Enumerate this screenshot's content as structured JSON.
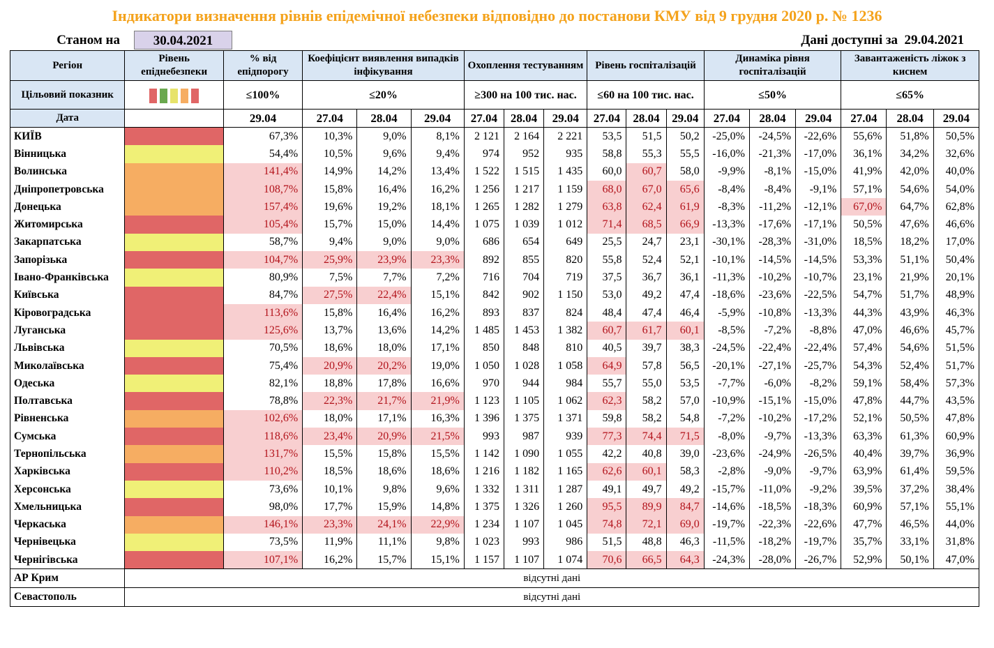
{
  "title": "Індикатори визначення рівнів епідемічної небезпеки відповідно до постанови КМУ від 9 грудня 2020 р. № 1236",
  "as_of": {
    "label": "Станом на",
    "date": "30.04.2021"
  },
  "available": {
    "label": "Дані доступні за",
    "date": "29.04.2021"
  },
  "headers": {
    "region": "Регіон",
    "level": "Рівень епіднебезпеки",
    "pct": "% від епідпорогу",
    "detect": "Коефіцієнт виявлення випадків інфікування",
    "testing": "Охоплення тестуванням",
    "hosp": "Рівень госпіталізацій",
    "dyn": "Динаміка рівня госпіталізацій",
    "oxygen": "Завантаженість ліжок з киснем"
  },
  "targets": {
    "label": "Цільовий показник",
    "pct": "≤100%",
    "detect": "≤20%",
    "testing": "≥300 на 100 тис. нас.",
    "hosp": "≤60 на 100 тис. нас.",
    "dyn": "≤50%",
    "oxygen": "≤65%"
  },
  "legend_colors": [
    "#e06666",
    "#6aa84f",
    "#e7e36b",
    "#f6ad62",
    "#e06666"
  ],
  "dates_label": "Дата",
  "dates": [
    "27.04",
    "28.04",
    "29.04"
  ],
  "level_colors": {
    "red": "#e06666",
    "orange": "#f6ad62",
    "yellow": "#f0f077"
  },
  "rows": [
    {
      "name": "КИЇВ",
      "level": "red",
      "pct": "67,3%",
      "detect": [
        "10,3%",
        "9,0%",
        "8,1%"
      ],
      "testing": [
        "2 121",
        "2 164",
        "2 221"
      ],
      "hosp": [
        "53,5",
        "51,5",
        "50,2"
      ],
      "dyn": [
        "-25,0%",
        "-24,5%",
        "-22,6%"
      ],
      "oxygen": [
        "55,6%",
        "51,8%",
        "50,5%"
      ]
    },
    {
      "name": "Вінницька",
      "level": "yellow",
      "pct": "54,4%",
      "detect": [
        "10,5%",
        "9,6%",
        "9,4%"
      ],
      "testing": [
        "974",
        "952",
        "935"
      ],
      "hosp": [
        "58,8",
        "55,3",
        "55,5"
      ],
      "dyn": [
        "-16,0%",
        "-21,3%",
        "-17,0%"
      ],
      "oxygen": [
        "36,1%",
        "34,2%",
        "32,6%"
      ]
    },
    {
      "name": "Волинська",
      "level": "orange",
      "pct": "141,4%",
      "detect": [
        "14,9%",
        "14,2%",
        "13,4%"
      ],
      "testing": [
        "1 522",
        "1 515",
        "1 435"
      ],
      "hosp": [
        "60,0",
        "60,7",
        "58,0"
      ],
      "dyn": [
        "-9,9%",
        "-8,1%",
        "-15,0%"
      ],
      "oxygen": [
        "41,9%",
        "42,0%",
        "40,0%"
      ]
    },
    {
      "name": "Дніпропетровська",
      "level": "orange",
      "pct": "108,7%",
      "detect": [
        "15,8%",
        "16,4%",
        "16,2%"
      ],
      "testing": [
        "1 256",
        "1 217",
        "1 159"
      ],
      "hosp": [
        "68,0",
        "67,0",
        "65,6"
      ],
      "dyn": [
        "-8,4%",
        "-8,4%",
        "-9,1%"
      ],
      "oxygen": [
        "57,1%",
        "54,6%",
        "54,0%"
      ]
    },
    {
      "name": "Донецька",
      "level": "orange",
      "pct": "157,4%",
      "detect": [
        "19,6%",
        "19,2%",
        "18,1%"
      ],
      "testing": [
        "1 265",
        "1 282",
        "1 279"
      ],
      "hosp": [
        "63,8",
        "62,4",
        "61,9"
      ],
      "dyn": [
        "-8,3%",
        "-11,2%",
        "-12,1%"
      ],
      "oxygen": [
        "67,0%",
        "64,7%",
        "62,8%"
      ]
    },
    {
      "name": "Житомирська",
      "level": "red",
      "pct": "105,4%",
      "detect": [
        "15,7%",
        "15,0%",
        "14,4%"
      ],
      "testing": [
        "1 075",
        "1 039",
        "1 012"
      ],
      "hosp": [
        "71,4",
        "68,5",
        "66,9"
      ],
      "dyn": [
        "-13,3%",
        "-17,6%",
        "-17,1%"
      ],
      "oxygen": [
        "50,5%",
        "47,6%",
        "46,6%"
      ]
    },
    {
      "name": "Закарпатська",
      "level": "yellow",
      "pct": "58,7%",
      "detect": [
        "9,4%",
        "9,0%",
        "9,0%"
      ],
      "testing": [
        "686",
        "654",
        "649"
      ],
      "hosp": [
        "25,5",
        "24,7",
        "23,1"
      ],
      "dyn": [
        "-30,1%",
        "-28,3%",
        "-31,0%"
      ],
      "oxygen": [
        "18,5%",
        "18,2%",
        "17,0%"
      ]
    },
    {
      "name": "Запорізька",
      "level": "red",
      "pct": "104,7%",
      "detect": [
        "25,9%",
        "23,9%",
        "23,3%"
      ],
      "testing": [
        "892",
        "855",
        "820"
      ],
      "hosp": [
        "55,8",
        "52,4",
        "52,1"
      ],
      "dyn": [
        "-10,1%",
        "-14,5%",
        "-14,5%"
      ],
      "oxygen": [
        "53,3%",
        "51,1%",
        "50,4%"
      ]
    },
    {
      "name": "Івано-Франківська",
      "level": "yellow",
      "pct": "80,9%",
      "detect": [
        "7,5%",
        "7,7%",
        "7,2%"
      ],
      "testing": [
        "716",
        "704",
        "719"
      ],
      "hosp": [
        "37,5",
        "36,7",
        "36,1"
      ],
      "dyn": [
        "-11,3%",
        "-10,2%",
        "-10,7%"
      ],
      "oxygen": [
        "23,1%",
        "21,9%",
        "20,1%"
      ]
    },
    {
      "name": "Київська",
      "level": "red",
      "pct": "84,7%",
      "detect": [
        "27,5%",
        "22,4%",
        "15,1%"
      ],
      "testing": [
        "842",
        "902",
        "1 150"
      ],
      "hosp": [
        "53,0",
        "49,2",
        "47,4"
      ],
      "dyn": [
        "-18,6%",
        "-23,6%",
        "-22,5%"
      ],
      "oxygen": [
        "54,7%",
        "51,7%",
        "48,9%"
      ]
    },
    {
      "name": "Кіровоградська",
      "level": "red",
      "pct": "113,6%",
      "detect": [
        "15,8%",
        "16,4%",
        "16,2%"
      ],
      "testing": [
        "893",
        "837",
        "824"
      ],
      "hosp": [
        "48,4",
        "47,4",
        "46,4"
      ],
      "dyn": [
        "-5,9%",
        "-10,8%",
        "-13,3%"
      ],
      "oxygen": [
        "44,3%",
        "43,9%",
        "46,3%"
      ]
    },
    {
      "name": "Луганська",
      "level": "red",
      "pct": "125,6%",
      "detect": [
        "13,7%",
        "13,6%",
        "14,2%"
      ],
      "testing": [
        "1 485",
        "1 453",
        "1 382"
      ],
      "hosp": [
        "60,7",
        "61,7",
        "60,1"
      ],
      "dyn": [
        "-8,5%",
        "-7,2%",
        "-8,8%"
      ],
      "oxygen": [
        "47,0%",
        "46,6%",
        "45,7%"
      ]
    },
    {
      "name": "Львівська",
      "level": "yellow",
      "pct": "70,5%",
      "detect": [
        "18,6%",
        "18,0%",
        "17,1%"
      ],
      "testing": [
        "850",
        "848",
        "810"
      ],
      "hosp": [
        "40,5",
        "39,7",
        "38,3"
      ],
      "dyn": [
        "-24,5%",
        "-22,4%",
        "-22,4%"
      ],
      "oxygen": [
        "57,4%",
        "54,6%",
        "51,5%"
      ]
    },
    {
      "name": "Миколаївська",
      "level": "red",
      "pct": "75,4%",
      "detect": [
        "20,9%",
        "20,2%",
        "19,0%"
      ],
      "testing": [
        "1 050",
        "1 028",
        "1 058"
      ],
      "hosp": [
        "64,9",
        "57,8",
        "56,5"
      ],
      "dyn": [
        "-20,1%",
        "-27,1%",
        "-25,7%"
      ],
      "oxygen": [
        "54,3%",
        "52,4%",
        "51,7%"
      ]
    },
    {
      "name": "Одеська",
      "level": "yellow",
      "pct": "82,1%",
      "detect": [
        "18,8%",
        "17,8%",
        "16,6%"
      ],
      "testing": [
        "970",
        "944",
        "984"
      ],
      "hosp": [
        "55,7",
        "55,0",
        "53,5"
      ],
      "dyn": [
        "-7,7%",
        "-6,0%",
        "-8,2%"
      ],
      "oxygen": [
        "59,1%",
        "58,4%",
        "57,3%"
      ]
    },
    {
      "name": "Полтавська",
      "level": "red",
      "pct": "78,8%",
      "detect": [
        "22,3%",
        "21,7%",
        "21,9%"
      ],
      "testing": [
        "1 123",
        "1 105",
        "1 062"
      ],
      "hosp": [
        "62,3",
        "58,2",
        "57,0"
      ],
      "dyn": [
        "-10,9%",
        "-15,1%",
        "-15,0%"
      ],
      "oxygen": [
        "47,8%",
        "44,7%",
        "43,5%"
      ]
    },
    {
      "name": "Рівненська",
      "level": "orange",
      "pct": "102,6%",
      "detect": [
        "18,0%",
        "17,1%",
        "16,3%"
      ],
      "testing": [
        "1 396",
        "1 375",
        "1 371"
      ],
      "hosp": [
        "59,8",
        "58,2",
        "54,8"
      ],
      "dyn": [
        "-7,2%",
        "-10,2%",
        "-17,2%"
      ],
      "oxygen": [
        "52,1%",
        "50,5%",
        "47,8%"
      ]
    },
    {
      "name": "Сумська",
      "level": "red",
      "pct": "118,6%",
      "detect": [
        "23,4%",
        "20,9%",
        "21,5%"
      ],
      "testing": [
        "993",
        "987",
        "939"
      ],
      "hosp": [
        "77,3",
        "74,4",
        "71,5"
      ],
      "dyn": [
        "-8,0%",
        "-9,7%",
        "-13,3%"
      ],
      "oxygen": [
        "63,3%",
        "61,3%",
        "60,9%"
      ]
    },
    {
      "name": "Тернопільська",
      "level": "orange",
      "pct": "131,7%",
      "detect": [
        "15,5%",
        "15,8%",
        "15,5%"
      ],
      "testing": [
        "1 142",
        "1 090",
        "1 055"
      ],
      "hosp": [
        "42,2",
        "40,8",
        "39,0"
      ],
      "dyn": [
        "-23,6%",
        "-24,9%",
        "-26,5%"
      ],
      "oxygen": [
        "40,4%",
        "39,7%",
        "36,9%"
      ]
    },
    {
      "name": "Харківська",
      "level": "red",
      "pct": "110,2%",
      "detect": [
        "18,5%",
        "18,6%",
        "18,6%"
      ],
      "testing": [
        "1 216",
        "1 182",
        "1 165"
      ],
      "hosp": [
        "62,6",
        "60,1",
        "58,3"
      ],
      "dyn": [
        "-2,8%",
        "-9,0%",
        "-9,7%"
      ],
      "oxygen": [
        "63,9%",
        "61,4%",
        "59,5%"
      ]
    },
    {
      "name": "Херсонська",
      "level": "yellow",
      "pct": "73,6%",
      "detect": [
        "10,1%",
        "9,8%",
        "9,6%"
      ],
      "testing": [
        "1 332",
        "1 311",
        "1 287"
      ],
      "hosp": [
        "49,1",
        "49,7",
        "49,2"
      ],
      "dyn": [
        "-15,7%",
        "-11,0%",
        "-9,2%"
      ],
      "oxygen": [
        "39,5%",
        "37,2%",
        "38,4%"
      ]
    },
    {
      "name": "Хмельницька",
      "level": "red",
      "pct": "98,0%",
      "detect": [
        "17,7%",
        "15,9%",
        "14,8%"
      ],
      "testing": [
        "1 375",
        "1 326",
        "1 260"
      ],
      "hosp": [
        "95,5",
        "89,9",
        "84,7"
      ],
      "dyn": [
        "-14,6%",
        "-18,5%",
        "-18,3%"
      ],
      "oxygen": [
        "60,9%",
        "57,1%",
        "55,1%"
      ]
    },
    {
      "name": "Черкаська",
      "level": "orange",
      "pct": "146,1%",
      "detect": [
        "23,3%",
        "24,1%",
        "22,9%"
      ],
      "testing": [
        "1 234",
        "1 107",
        "1 045"
      ],
      "hosp": [
        "74,8",
        "72,1",
        "69,0"
      ],
      "dyn": [
        "-19,7%",
        "-22,3%",
        "-22,6%"
      ],
      "oxygen": [
        "47,7%",
        "46,5%",
        "44,0%"
      ]
    },
    {
      "name": "Чернівецька",
      "level": "yellow",
      "pct": "73,5%",
      "detect": [
        "11,9%",
        "11,1%",
        "9,8%"
      ],
      "testing": [
        "1 023",
        "993",
        "986"
      ],
      "hosp": [
        "51,5",
        "48,8",
        "46,3"
      ],
      "dyn": [
        "-11,5%",
        "-18,2%",
        "-19,7%"
      ],
      "oxygen": [
        "35,7%",
        "33,1%",
        "31,8%"
      ]
    },
    {
      "name": "Чернігівська",
      "level": "red",
      "pct": "107,1%",
      "detect": [
        "16,2%",
        "15,7%",
        "15,1%"
      ],
      "testing": [
        "1 157",
        "1 107",
        "1 074"
      ],
      "hosp": [
        "70,6",
        "66,5",
        "64,3"
      ],
      "dyn": [
        "-24,3%",
        "-28,0%",
        "-26,7%"
      ],
      "oxygen": [
        "52,9%",
        "50,1%",
        "47,0%"
      ]
    }
  ],
  "no_data_rows": [
    {
      "name": "АР Крим",
      "text": "відсутні дані"
    },
    {
      "name": "Севастополь",
      "text": "відсутні дані"
    }
  ]
}
